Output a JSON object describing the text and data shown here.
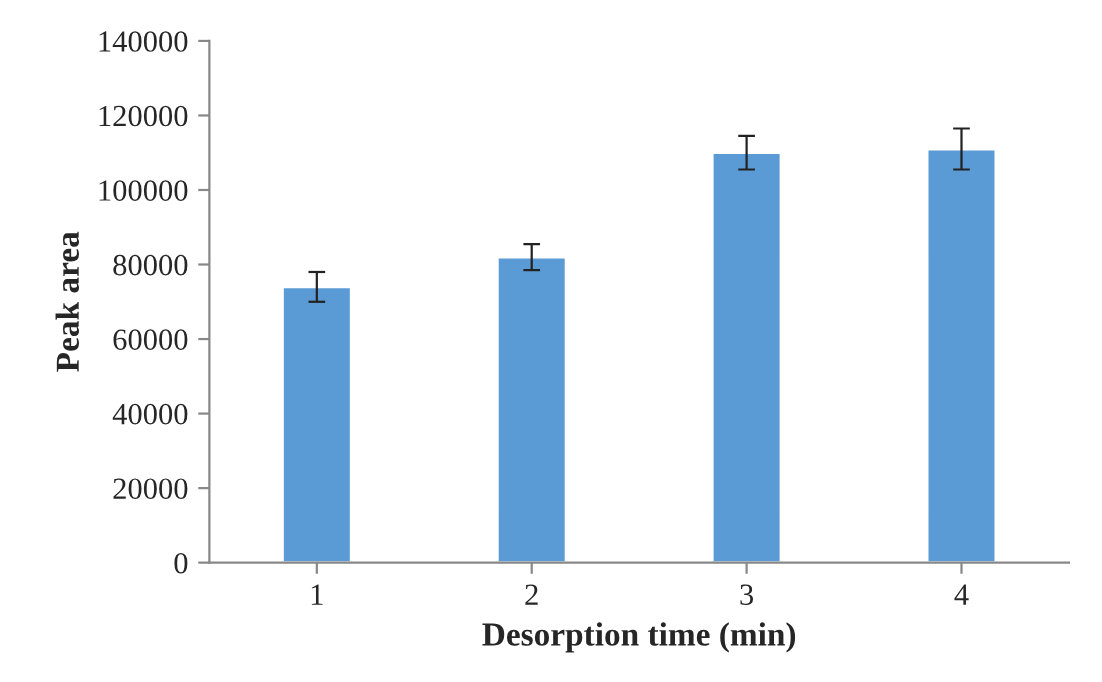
{
  "chart_data": {
    "type": "bar",
    "xlabel": "Desorption time (min)",
    "ylabel": "Peak area",
    "categories": [
      "1",
      "2",
      "3",
      "4"
    ],
    "values": [
      74000,
      82000,
      110000,
      111000
    ],
    "errors": [
      4000,
      3500,
      4500,
      5500
    ],
    "color": "#5b9bd5",
    "ylim": [
      0,
      140000
    ],
    "yticks": [
      0,
      20000,
      40000,
      60000,
      80000,
      100000,
      120000,
      140000
    ],
    "grid": false
  }
}
